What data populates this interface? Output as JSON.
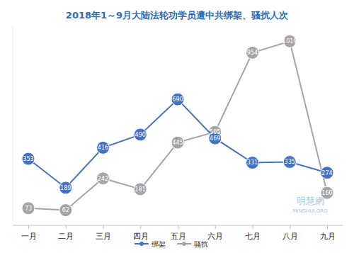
{
  "chart_data": {
    "type": "line",
    "title": "2018年1～9月大陆法轮功学员遭中共绑架、骚扰人次",
    "categories": [
      "一月",
      "二月",
      "三月",
      "四月",
      "五月",
      "六月",
      "七月",
      "八月",
      "九月"
    ],
    "series": [
      {
        "name": "绑架",
        "color": "#4472c4",
        "marker": "circle",
        "values": [
          353,
          189,
          416,
          490,
          690,
          469,
          331,
          335,
          274
        ]
      },
      {
        "name": "骚扰",
        "color": "#a5a5a5",
        "marker": "circle",
        "values": [
          73,
          62,
          242,
          181,
          445,
          505,
          954,
          1019,
          160
        ]
      }
    ],
    "ylim": [
      0,
      1100
    ],
    "tick_labels": "x",
    "data_labels": true,
    "legend": "bottom",
    "annotations": [
      "明慧網",
      "MINGHUI.ORG"
    ]
  }
}
